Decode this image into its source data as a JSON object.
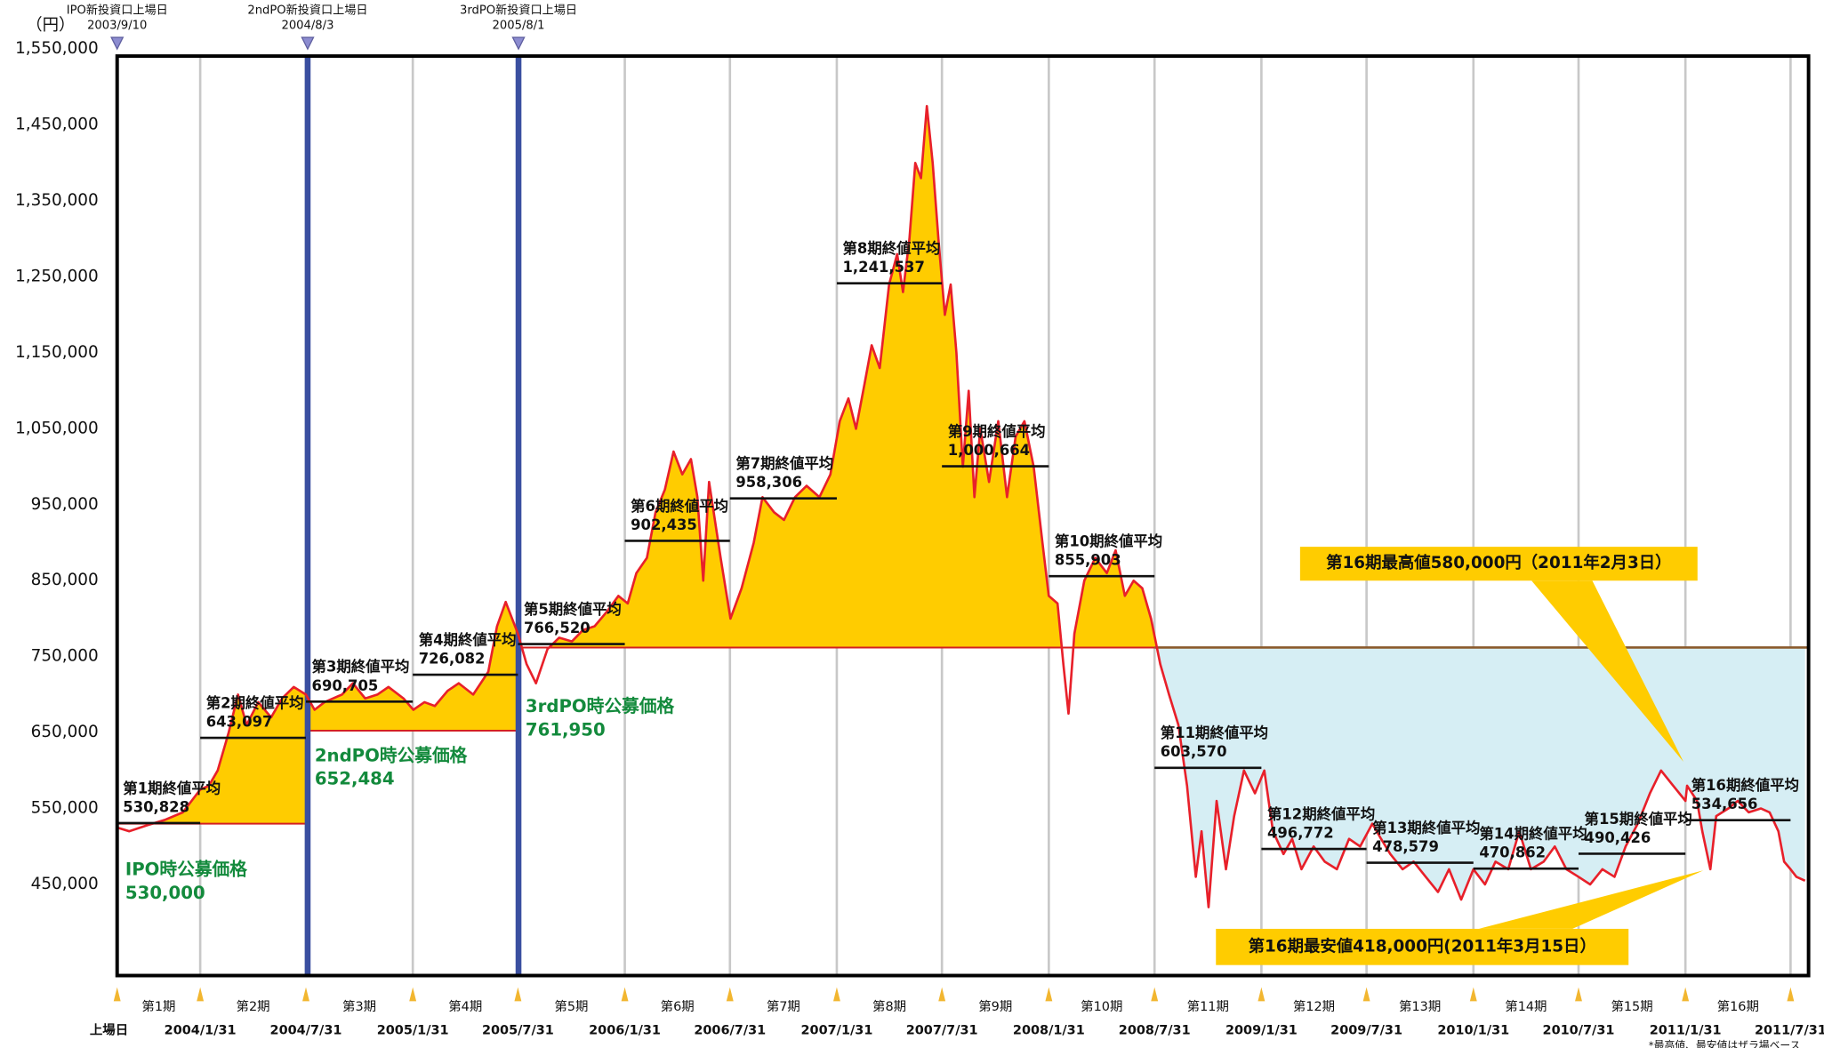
{
  "chart_data": {
    "type": "line",
    "unit_label": "（円）",
    "color": "#e8202a",
    "fill_color": "#ffcc00",
    "below_fill_color": "#d6eef4",
    "grid": true,
    "xlim": [
      "2003/9/10",
      "2011/8/31"
    ],
    "ylim": [
      330000,
      1550000
    ],
    "yticks": [
      {
        "value": 1550000,
        "label": "1,550,000"
      },
      {
        "value": 1450000,
        "label": "1,450,000"
      },
      {
        "value": 1350000,
        "label": "1,350,000"
      },
      {
        "value": 1250000,
        "label": "1,250,000"
      },
      {
        "value": 1150000,
        "label": "1,150,000"
      },
      {
        "value": 1050000,
        "label": "1,050,000"
      },
      {
        "value": 950000,
        "label": "950,000"
      },
      {
        "value": 850000,
        "label": "850,000"
      },
      {
        "value": 750000,
        "label": "750,000"
      },
      {
        "value": 650000,
        "label": "650,000"
      },
      {
        "value": 550000,
        "label": "550,000"
      },
      {
        "value": 450000,
        "label": "450,000"
      }
    ],
    "xticks": [
      {
        "value": "2003/9/10",
        "label": "上場日"
      },
      "2004/1/31",
      "2004/7/31",
      "2005/1/31",
      "2005/7/31",
      "2006/1/31",
      "2006/7/31",
      "2007/1/31",
      "2007/7/31",
      "2008/1/31",
      "2008/7/31",
      "2009/1/31",
      "2009/7/31",
      "2010/1/31",
      "2010/7/31",
      "2011/1/31",
      "2011/7/31"
    ],
    "period_names": [
      "第1期",
      "第2期",
      "第3期",
      "第4期",
      "第5期",
      "第6期",
      "第7期",
      "第8期",
      "第9期",
      "第10期",
      "第11期",
      "第12期",
      "第13期",
      "第14期",
      "第15期",
      "第16期"
    ],
    "period_averages": {
      "titles": [
        "第1期終値平均",
        "第2期終値平均",
        "第3期終値平均",
        "第4期終値平均",
        "第5期終値平均",
        "第6期終値平均",
        "第7期終値平均",
        "第8期終値平均",
        "第9期終値平均",
        "第10期終値平均",
        "第11期終値平均",
        "第12期終値平均",
        "第13期終値平均",
        "第14期終値平均",
        "第15期終値平均",
        "第16期終値平均"
      ],
      "values": [
        530828,
        643097,
        690705,
        726082,
        766520,
        902435,
        958306,
        1241537,
        1000664,
        855903,
        603570,
        496772,
        478579,
        470862,
        490426,
        534656
      ],
      "value_labels": [
        "530,828",
        "643,097",
        "690,705",
        "726,082",
        "766,520",
        "902,435",
        "958,306",
        "1,241,537",
        "1,000,664",
        "855,903",
        "603,570",
        "496,772",
        "478,579",
        "470,862",
        "490,426",
        "534,656"
      ]
    },
    "listing_markers": [
      {
        "label": "IPO新投資口上場日",
        "date": "2003/9/10"
      },
      {
        "label": "2ndPO新投資口上場日",
        "date": "2004/8/3"
      },
      {
        "label": "3rdPO新投資口上場日",
        "date": "2005/8/1"
      }
    ],
    "offerings": [
      {
        "label": "IPO時公募価格",
        "value": 530000,
        "value_label": "530,000"
      },
      {
        "label": "2ndPO時公募価格",
        "value": 652484,
        "value_label": "652,484"
      },
      {
        "label": "3rdPO時公募価格",
        "value": 761950,
        "value_label": "761,950"
      }
    ],
    "annotations": [
      "第16期最高値580,000円（2011年2月3日）",
      "第16期最安値418,000円(2011年3月15日）"
    ],
    "footnote": "*最高値、最安値はザラ場ベース",
    "x": [
      "2003/9/10",
      "2003/10/1",
      "2003/11/1",
      "2003/12/1",
      "2004/1/1",
      "2004/1/31",
      "2004/2/15",
      "2004/3/1",
      "2004/3/20",
      "2004/4/5",
      "2004/4/20",
      "2004/5/10",
      "2004/6/1",
      "2004/6/20",
      "2004/7/10",
      "2004/7/31",
      "2004/8/15",
      "2004/9/1",
      "2004/10/1",
      "2004/10/20",
      "2004/11/10",
      "2004/12/1",
      "2004/12/20",
      "2005/1/15",
      "2005/2/1",
      "2005/2/20",
      "2005/3/10",
      "2005/4/1",
      "2005/4/20",
      "2005/5/15",
      "2005/6/10",
      "2005/6/25",
      "2005/7/10",
      "2005/7/31",
      "2005/8/15",
      "2005/8/31",
      "2005/9/20",
      "2005/10/10",
      "2005/11/1",
      "2005/11/20",
      "2005/12/10",
      "2006/1/1",
      "2006/1/20",
      "2006/2/5",
      "2006/2/20",
      "2006/3/10",
      "2006/3/25",
      "2006/4/10",
      "2006/4/25",
      "2006/5/10",
      "2006/5/25",
      "2006/6/5",
      "2006/6/15",
      "2006/6/25",
      "2006/7/15",
      "2006/8/1",
      "2006/8/20",
      "2006/9/10",
      "2006/9/25",
      "2006/10/15",
      "2006/11/1",
      "2006/11/20",
      "2006/12/10",
      "2007/1/1",
      "2007/1/20",
      "2007/2/5",
      "2007/2/20",
      "2007/3/5",
      "2007/3/20",
      "2007/4/1",
      "2007/4/15",
      "2007/5/1",
      "2007/5/15",
      "2007/5/25",
      "2007/6/5",
      "2007/6/15",
      "2007/6/25",
      "2007/7/5",
      "2007/7/15",
      "2007/7/25",
      "2007/8/5",
      "2007/8/15",
      "2007/8/25",
      "2007/9/5",
      "2007/9/15",
      "2007/9/25",
      "2007/10/5",
      "2007/10/20",
      "2007/11/5",
      "2007/11/20",
      "2007/12/5",
      "2007/12/20",
      "2008/1/5",
      "2008/1/20",
      "2008/1/31",
      "2008/2/15",
      "2008/2/25",
      "2008/3/5",
      "2008/3/15",
      "2008/4/1",
      "2008/4/20",
      "2008/5/10",
      "2008/5/25",
      "2008/6/10",
      "2008/6/25",
      "2008/7/10",
      "2008/7/25",
      "2008/8/10",
      "2008/8/25",
      "2008/9/10",
      "2008/9/25",
      "2008/10/10",
      "2008/10/20",
      "2008/11/1",
      "2008/11/15",
      "2008/12/1",
      "2008/12/15",
      "2009/1/1",
      "2009/1/20",
      "2009/2/5",
      "2009/2/20",
      "2009/3/10",
      "2009/3/25",
      "2009/4/10",
      "2009/5/1",
      "2009/5/20",
      "2009/6/10",
      "2009/7/1",
      "2009/7/20",
      "2009/8/10",
      "2009/8/25",
      "2009/9/10",
      "2009/10/1",
      "2009/10/20",
      "2009/11/10",
      "2009/12/1",
      "2009/12/20",
      "2010/1/10",
      "2010/1/31",
      "2010/2/20",
      "2010/3/10",
      "2010/4/1",
      "2010/4/20",
      "2010/5/10",
      "2010/6/1",
      "2010/6/20",
      "2010/7/10",
      "2010/7/31",
      "2010/8/20",
      "2010/9/10",
      "2010/10/1",
      "2010/10/20",
      "2010/11/10",
      "2010/12/1",
      "2010/12/20",
      "2011/1/10",
      "2011/1/31",
      "2011/2/3",
      "2011/2/20",
      "2011/3/1",
      "2011/3/15",
      "2011/3/25",
      "2011/4/15",
      "2011/5/1",
      "2011/5/20",
      "2011/6/10",
      "2011/6/25",
      "2011/7/10",
      "2011/7/20",
      "2011/7/31",
      "2011/8/10",
      "2011/8/25"
    ],
    "values": [
      525000,
      520000,
      528000,
      535000,
      545000,
      575000,
      580000,
      600000,
      650000,
      700000,
      660000,
      690000,
      670000,
      695000,
      710000,
      700000,
      680000,
      690000,
      700000,
      715000,
      695000,
      700000,
      710000,
      695000,
      680000,
      690000,
      685000,
      705000,
      715000,
      700000,
      730000,
      790000,
      822000,
      780000,
      740000,
      715000,
      760000,
      775000,
      770000,
      785000,
      790000,
      810000,
      830000,
      820000,
      860000,
      880000,
      940000,
      970000,
      1020000,
      990000,
      1010000,
      960000,
      850000,
      980000,
      880000,
      800000,
      840000,
      900000,
      960000,
      940000,
      930000,
      960000,
      975000,
      960000,
      990000,
      1060000,
      1090000,
      1050000,
      1110000,
      1160000,
      1130000,
      1240000,
      1280000,
      1230000,
      1300000,
      1400000,
      1380000,
      1475000,
      1400000,
      1300000,
      1200000,
      1240000,
      1150000,
      1000000,
      1100000,
      960000,
      1050000,
      980000,
      1060000,
      960000,
      1040000,
      1060000,
      1000000,
      900000,
      830000,
      820000,
      740000,
      675000,
      780000,
      850000,
      880000,
      860000,
      890000,
      830000,
      850000,
      840000,
      800000,
      740000,
      700000,
      660000,
      580000,
      460000,
      520000,
      420000,
      560000,
      470000,
      540000,
      600000,
      570000,
      600000,
      520000,
      490000,
      510000,
      470000,
      500000,
      480000,
      470000,
      510000,
      500000,
      530000,
      510000,
      490000,
      470000,
      480000,
      460000,
      440000,
      470000,
      430000,
      470000,
      450000,
      480000,
      470000,
      520000,
      470000,
      480000,
      500000,
      470000,
      460000,
      450000,
      470000,
      460000,
      500000,
      530000,
      570000,
      600000,
      580000,
      560000,
      580000,
      560000,
      520000,
      470000,
      540000,
      550000,
      560000,
      545000,
      550000,
      545000,
      520000,
      480000,
      470000,
      460000,
      455000
    ]
  }
}
